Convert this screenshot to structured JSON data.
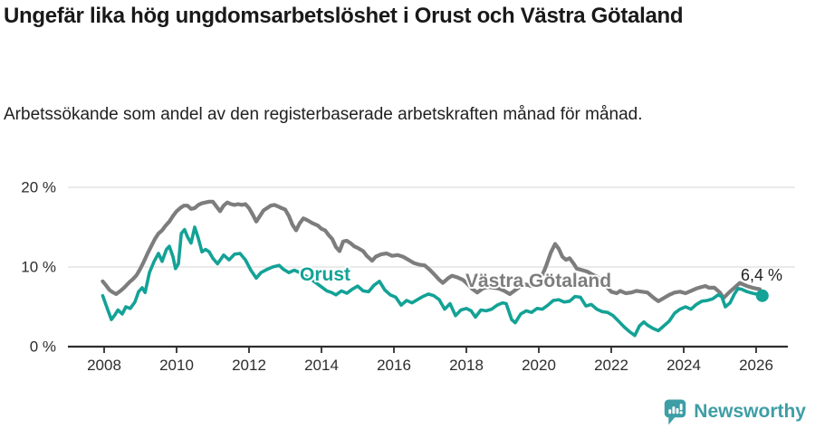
{
  "header": {
    "title": "Ungefär lika hög ungdomsarbetslöshet i Orust och Västra Götaland",
    "subtitle": "Arbetssökande som andel av den registerbaserade arbetskraften månad för månad."
  },
  "chart_data": {
    "type": "line",
    "title": "Ungefär lika hög ungdomsarbetslöshet i Orust och Västra Götaland",
    "subtitle": "Arbetssökande som andel av den registerbaserade arbetskraften månad för månad.",
    "xlabel": "",
    "ylabel": "",
    "grid": true,
    "legend_position": "inline-labels-on-lines",
    "x_axis": {
      "range": [
        2007.7,
        2027.0
      ],
      "ticks": [
        2008,
        2010,
        2012,
        2014,
        2016,
        2018,
        2020,
        2022,
        2024,
        2026
      ]
    },
    "y_axis": {
      "range": [
        0,
        21
      ],
      "unit": "%",
      "ticks": [
        {
          "value": 0,
          "label": "0 %"
        },
        {
          "value": 10,
          "label": "10 %"
        },
        {
          "value": 20,
          "label": "20 %"
        }
      ]
    },
    "series": [
      {
        "name": "Västra Götaland",
        "slug": "vastra-gotaland",
        "color": "#7d7d7d",
        "stroke_width": 4.2,
        "label_pos": {
          "x": 514,
          "y": 317
        },
        "points": [
          [
            2007.96,
            8.2
          ],
          [
            2008.05,
            7.7
          ],
          [
            2008.15,
            7.1
          ],
          [
            2008.25,
            6.8
          ],
          [
            2008.33,
            6.6
          ],
          [
            2008.45,
            7.0
          ],
          [
            2008.55,
            7.4
          ],
          [
            2008.7,
            8.1
          ],
          [
            2008.8,
            8.5
          ],
          [
            2008.9,
            9.0
          ],
          [
            2009.0,
            9.8
          ],
          [
            2009.1,
            10.7
          ],
          [
            2009.2,
            11.7
          ],
          [
            2009.3,
            12.6
          ],
          [
            2009.4,
            13.5
          ],
          [
            2009.5,
            14.2
          ],
          [
            2009.6,
            14.6
          ],
          [
            2009.7,
            15.2
          ],
          [
            2009.8,
            15.7
          ],
          [
            2009.9,
            16.4
          ],
          [
            2010.0,
            17.0
          ],
          [
            2010.1,
            17.4
          ],
          [
            2010.2,
            17.7
          ],
          [
            2010.3,
            17.7
          ],
          [
            2010.4,
            17.3
          ],
          [
            2010.5,
            17.4
          ],
          [
            2010.6,
            17.8
          ],
          [
            2010.7,
            18.0
          ],
          [
            2010.8,
            18.1
          ],
          [
            2010.9,
            18.2
          ],
          [
            2011.0,
            18.2
          ],
          [
            2011.1,
            17.6
          ],
          [
            2011.2,
            17.0
          ],
          [
            2011.3,
            17.7
          ],
          [
            2011.4,
            18.1
          ],
          [
            2011.5,
            17.9
          ],
          [
            2011.6,
            17.8
          ],
          [
            2011.7,
            17.9
          ],
          [
            2011.8,
            17.8
          ],
          [
            2011.9,
            17.9
          ],
          [
            2012.0,
            17.4
          ],
          [
            2012.1,
            16.6
          ],
          [
            2012.2,
            15.7
          ],
          [
            2012.3,
            16.4
          ],
          [
            2012.4,
            17.1
          ],
          [
            2012.5,
            17.4
          ],
          [
            2012.6,
            17.7
          ],
          [
            2012.7,
            17.8
          ],
          [
            2012.8,
            17.6
          ],
          [
            2012.9,
            17.4
          ],
          [
            2013.0,
            17.2
          ],
          [
            2013.1,
            16.4
          ],
          [
            2013.2,
            15.3
          ],
          [
            2013.3,
            14.6
          ],
          [
            2013.4,
            15.5
          ],
          [
            2013.5,
            16.1
          ],
          [
            2013.6,
            15.9
          ],
          [
            2013.75,
            15.5
          ],
          [
            2013.9,
            15.2
          ],
          [
            2014.0,
            14.8
          ],
          [
            2014.1,
            14.6
          ],
          [
            2014.2,
            14.0
          ],
          [
            2014.3,
            13.5
          ],
          [
            2014.4,
            12.5
          ],
          [
            2014.5,
            12.0
          ],
          [
            2014.6,
            13.2
          ],
          [
            2014.7,
            13.3
          ],
          [
            2014.8,
            13.0
          ],
          [
            2014.9,
            12.6
          ],
          [
            2015.0,
            12.4
          ],
          [
            2015.15,
            12.0
          ],
          [
            2015.25,
            11.4
          ],
          [
            2015.4,
            10.8
          ],
          [
            2015.5,
            11.3
          ],
          [
            2015.65,
            11.6
          ],
          [
            2015.8,
            11.7
          ],
          [
            2015.95,
            11.4
          ],
          [
            2016.1,
            11.5
          ],
          [
            2016.25,
            11.3
          ],
          [
            2016.4,
            10.9
          ],
          [
            2016.55,
            10.5
          ],
          [
            2016.7,
            10.3
          ],
          [
            2016.85,
            10.2
          ],
          [
            2017.0,
            9.6
          ],
          [
            2017.15,
            8.9
          ],
          [
            2017.25,
            8.4
          ],
          [
            2017.35,
            8.0
          ],
          [
            2017.5,
            8.6
          ],
          [
            2017.6,
            8.9
          ],
          [
            2017.75,
            8.7
          ],
          [
            2017.9,
            8.4
          ],
          [
            2018.0,
            8.0
          ],
          [
            2018.15,
            7.3
          ],
          [
            2018.3,
            6.8
          ],
          [
            2018.45,
            7.3
          ],
          [
            2018.6,
            7.5
          ],
          [
            2018.75,
            7.4
          ],
          [
            2018.9,
            7.3
          ],
          [
            2019.05,
            7.0
          ],
          [
            2019.2,
            6.6
          ],
          [
            2019.35,
            7.1
          ],
          [
            2019.5,
            7.6
          ],
          [
            2019.65,
            7.8
          ],
          [
            2019.8,
            7.6
          ],
          [
            2019.95,
            7.9
          ],
          [
            2020.1,
            9.0
          ],
          [
            2020.2,
            10.1
          ],
          [
            2020.33,
            11.8
          ],
          [
            2020.45,
            12.9
          ],
          [
            2020.55,
            12.3
          ],
          [
            2020.65,
            11.3
          ],
          [
            2020.75,
            10.9
          ],
          [
            2020.85,
            11.1
          ],
          [
            2020.95,
            10.5
          ],
          [
            2021.05,
            9.8
          ],
          [
            2021.2,
            9.6
          ],
          [
            2021.35,
            9.4
          ],
          [
            2021.5,
            9.0
          ],
          [
            2021.6,
            8.8
          ],
          [
            2021.75,
            8.2
          ],
          [
            2021.9,
            7.4
          ],
          [
            2022.0,
            6.9
          ],
          [
            2022.15,
            6.7
          ],
          [
            2022.25,
            7.0
          ],
          [
            2022.4,
            6.7
          ],
          [
            2022.55,
            6.8
          ],
          [
            2022.7,
            7.0
          ],
          [
            2022.85,
            6.9
          ],
          [
            2023.0,
            6.8
          ],
          [
            2023.15,
            6.2
          ],
          [
            2023.3,
            5.7
          ],
          [
            2023.45,
            6.1
          ],
          [
            2023.6,
            6.5
          ],
          [
            2023.75,
            6.8
          ],
          [
            2023.9,
            6.9
          ],
          [
            2024.05,
            6.7
          ],
          [
            2024.2,
            7.0
          ],
          [
            2024.35,
            7.3
          ],
          [
            2024.5,
            7.5
          ],
          [
            2024.6,
            7.6
          ],
          [
            2024.7,
            7.4
          ],
          [
            2024.85,
            7.4
          ],
          [
            2025.0,
            6.8
          ],
          [
            2025.1,
            6.1
          ],
          [
            2025.25,
            6.8
          ],
          [
            2025.4,
            7.4
          ],
          [
            2025.55,
            8.0
          ],
          [
            2025.65,
            7.8
          ],
          [
            2025.75,
            7.6
          ],
          [
            2025.9,
            7.4
          ],
          [
            2026.0,
            7.3
          ],
          [
            2026.1,
            7.2
          ]
        ]
      },
      {
        "name": "Orust",
        "slug": "orust",
        "color": "#13a296",
        "stroke_width": 3.6,
        "label_pos": {
          "x": 331,
          "y": 310
        },
        "end_dot": {
          "radius": 7
        },
        "end_label": {
          "text": "6,4 %",
          "x": 818,
          "y": 310
        },
        "end_value": "6,4 %",
        "points": [
          [
            2007.96,
            6.4
          ],
          [
            2008.07,
            5.0
          ],
          [
            2008.2,
            3.4
          ],
          [
            2008.3,
            4.0
          ],
          [
            2008.38,
            4.6
          ],
          [
            2008.5,
            4.1
          ],
          [
            2008.6,
            5.0
          ],
          [
            2008.72,
            4.8
          ],
          [
            2008.85,
            5.6
          ],
          [
            2008.95,
            6.9
          ],
          [
            2009.05,
            7.4
          ],
          [
            2009.13,
            6.8
          ],
          [
            2009.25,
            9.3
          ],
          [
            2009.38,
            10.7
          ],
          [
            2009.5,
            11.7
          ],
          [
            2009.6,
            10.7
          ],
          [
            2009.72,
            12.2
          ],
          [
            2009.8,
            12.6
          ],
          [
            2009.9,
            11.3
          ],
          [
            2009.97,
            9.8
          ],
          [
            2010.05,
            10.4
          ],
          [
            2010.13,
            14.2
          ],
          [
            2010.22,
            14.7
          ],
          [
            2010.3,
            13.8
          ],
          [
            2010.4,
            13.0
          ],
          [
            2010.5,
            15.0
          ],
          [
            2010.6,
            13.6
          ],
          [
            2010.7,
            11.9
          ],
          [
            2010.8,
            12.2
          ],
          [
            2010.9,
            11.9
          ],
          [
            2011.0,
            11.1
          ],
          [
            2011.13,
            10.4
          ],
          [
            2011.3,
            11.5
          ],
          [
            2011.45,
            10.9
          ],
          [
            2011.6,
            11.6
          ],
          [
            2011.75,
            11.7
          ],
          [
            2011.9,
            10.9
          ],
          [
            2012.05,
            9.6
          ],
          [
            2012.2,
            8.6
          ],
          [
            2012.33,
            9.3
          ],
          [
            2012.5,
            9.7
          ],
          [
            2012.65,
            10.0
          ],
          [
            2012.83,
            10.2
          ],
          [
            2012.95,
            9.7
          ],
          [
            2013.1,
            9.3
          ],
          [
            2013.25,
            9.6
          ],
          [
            2013.4,
            9.3
          ],
          [
            2013.55,
            8.9
          ],
          [
            2013.7,
            8.5
          ],
          [
            2013.85,
            8.0
          ],
          [
            2014.0,
            7.5
          ],
          [
            2014.15,
            7.0
          ],
          [
            2014.28,
            6.8
          ],
          [
            2014.4,
            6.5
          ],
          [
            2014.55,
            7.0
          ],
          [
            2014.7,
            6.7
          ],
          [
            2014.85,
            7.2
          ],
          [
            2015.0,
            7.6
          ],
          [
            2015.15,
            7.0
          ],
          [
            2015.3,
            6.9
          ],
          [
            2015.45,
            7.7
          ],
          [
            2015.6,
            8.2
          ],
          [
            2015.75,
            7.1
          ],
          [
            2015.9,
            6.5
          ],
          [
            2016.05,
            6.2
          ],
          [
            2016.2,
            5.2
          ],
          [
            2016.35,
            5.8
          ],
          [
            2016.5,
            5.5
          ],
          [
            2016.65,
            5.9
          ],
          [
            2016.8,
            6.3
          ],
          [
            2016.95,
            6.6
          ],
          [
            2017.1,
            6.4
          ],
          [
            2017.25,
            5.9
          ],
          [
            2017.4,
            4.7
          ],
          [
            2017.55,
            5.4
          ],
          [
            2017.7,
            3.9
          ],
          [
            2017.85,
            4.6
          ],
          [
            2018.0,
            4.8
          ],
          [
            2018.13,
            4.5
          ],
          [
            2018.25,
            3.7
          ],
          [
            2018.4,
            4.6
          ],
          [
            2018.55,
            4.5
          ],
          [
            2018.7,
            4.7
          ],
          [
            2018.85,
            5.2
          ],
          [
            2019.0,
            5.5
          ],
          [
            2019.1,
            5.4
          ],
          [
            2019.25,
            3.4
          ],
          [
            2019.35,
            3.0
          ],
          [
            2019.5,
            4.1
          ],
          [
            2019.65,
            4.5
          ],
          [
            2019.8,
            4.3
          ],
          [
            2019.95,
            4.8
          ],
          [
            2020.1,
            4.7
          ],
          [
            2020.25,
            5.2
          ],
          [
            2020.4,
            5.8
          ],
          [
            2020.55,
            5.9
          ],
          [
            2020.7,
            5.6
          ],
          [
            2020.85,
            5.7
          ],
          [
            2021.0,
            6.3
          ],
          [
            2021.15,
            6.2
          ],
          [
            2021.3,
            5.1
          ],
          [
            2021.45,
            5.3
          ],
          [
            2021.6,
            4.7
          ],
          [
            2021.75,
            4.4
          ],
          [
            2021.9,
            4.3
          ],
          [
            2022.05,
            3.9
          ],
          [
            2022.2,
            3.2
          ],
          [
            2022.35,
            2.5
          ],
          [
            2022.5,
            1.9
          ],
          [
            2022.65,
            1.4
          ],
          [
            2022.78,
            2.6
          ],
          [
            2022.9,
            3.1
          ],
          [
            2023.0,
            2.7
          ],
          [
            2023.15,
            2.3
          ],
          [
            2023.3,
            2.0
          ],
          [
            2023.45,
            2.6
          ],
          [
            2023.6,
            3.2
          ],
          [
            2023.75,
            4.2
          ],
          [
            2023.9,
            4.7
          ],
          [
            2024.05,
            5.0
          ],
          [
            2024.2,
            4.7
          ],
          [
            2024.35,
            5.3
          ],
          [
            2024.5,
            5.7
          ],
          [
            2024.65,
            5.8
          ],
          [
            2024.8,
            6.0
          ],
          [
            2024.95,
            6.5
          ],
          [
            2025.05,
            6.3
          ],
          [
            2025.15,
            5.0
          ],
          [
            2025.28,
            5.5
          ],
          [
            2025.4,
            6.6
          ],
          [
            2025.5,
            7.3
          ],
          [
            2025.6,
            7.2
          ],
          [
            2025.75,
            6.9
          ],
          [
            2025.9,
            6.7
          ],
          [
            2026.0,
            6.6
          ],
          [
            2026.17,
            6.4
          ]
        ]
      }
    ]
  },
  "footer": {
    "brand": "Newsworthy",
    "brand_color": "#3e9ea5",
    "logo_icon": "newsworthy-speech-bubble-bar-chart-icon"
  }
}
